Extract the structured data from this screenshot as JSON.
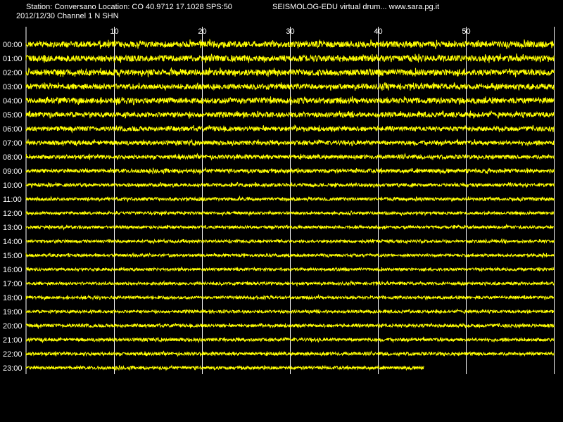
{
  "header": {
    "station_line": "Station: Conversano Location: CO 40.9712 17.1028 SPS:50",
    "date_line": "2012/12/30  Channel 1 N SHN",
    "app_line": "SEISMOLOG-EDU virtual drum... www.sara.pg.it"
  },
  "colors": {
    "background": "#000000",
    "trace": "#ffff00",
    "grid": "#ffffff",
    "text": "#ffffff"
  },
  "chart_data": {
    "type": "line",
    "title": "",
    "xlabel": "",
    "ylabel": "",
    "x_unit_hint": "minutes",
    "xlim": [
      0,
      60
    ],
    "x_ticks": [
      10,
      20,
      30,
      40,
      50
    ],
    "x_tick_labels": [
      "10",
      "20",
      "30",
      "40",
      "50"
    ],
    "grid": true,
    "rows": [
      {
        "label": "00:00",
        "end_minute": 60,
        "amplitude": 0.85
      },
      {
        "label": "01:00",
        "end_minute": 60,
        "amplitude": 0.85
      },
      {
        "label": "02:00",
        "end_minute": 60,
        "amplitude": 0.85
      },
      {
        "label": "03:00",
        "end_minute": 60,
        "amplitude": 0.75
      },
      {
        "label": "04:00",
        "end_minute": 60,
        "amplitude": 0.8
      },
      {
        "label": "05:00",
        "end_minute": 60,
        "amplitude": 0.7
      },
      {
        "label": "06:00",
        "end_minute": 60,
        "amplitude": 0.65
      },
      {
        "label": "07:00",
        "end_minute": 60,
        "amplitude": 0.6
      },
      {
        "label": "08:00",
        "end_minute": 60,
        "amplitude": 0.55
      },
      {
        "label": "09:00",
        "end_minute": 60,
        "amplitude": 0.55
      },
      {
        "label": "10:00",
        "end_minute": 60,
        "amplitude": 0.45
      },
      {
        "label": "11:00",
        "end_minute": 60,
        "amplitude": 0.45
      },
      {
        "label": "12:00",
        "end_minute": 60,
        "amplitude": 0.4
      },
      {
        "label": "13:00",
        "end_minute": 60,
        "amplitude": 0.4
      },
      {
        "label": "14:00",
        "end_minute": 60,
        "amplitude": 0.4
      },
      {
        "label": "15:00",
        "end_minute": 60,
        "amplitude": 0.4
      },
      {
        "label": "16:00",
        "end_minute": 60,
        "amplitude": 0.4
      },
      {
        "label": "17:00",
        "end_minute": 60,
        "amplitude": 0.4
      },
      {
        "label": "18:00",
        "end_minute": 60,
        "amplitude": 0.4
      },
      {
        "label": "19:00",
        "end_minute": 60,
        "amplitude": 0.4
      },
      {
        "label": "20:00",
        "end_minute": 60,
        "amplitude": 0.45
      },
      {
        "label": "21:00",
        "end_minute": 60,
        "amplitude": 0.45
      },
      {
        "label": "22:00",
        "end_minute": 60,
        "amplitude": 0.45
      },
      {
        "label": "23:00",
        "end_minute": 45.2,
        "amplitude": 0.45
      }
    ]
  }
}
